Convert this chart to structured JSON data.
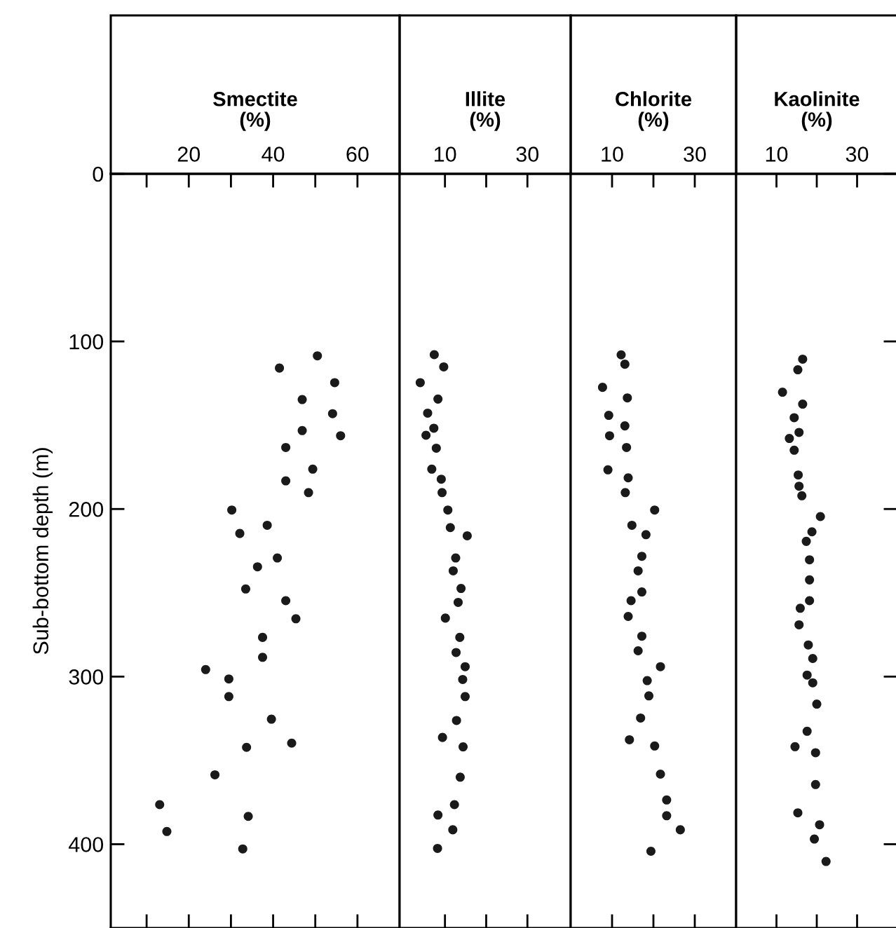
{
  "chart_data": [
    {
      "type": "scatter",
      "xlabel": "Smectite\n(%)",
      "ylabel": "Sub-bottom depth (m)",
      "color": "#1a1a1a",
      "marker": "circle",
      "grid": false,
      "legend": false,
      "xlim": [
        1.5,
        70
      ],
      "xticks": [
        {
          "value": 10,
          "label": null
        },
        20,
        {
          "value": 30,
          "label": null
        },
        40,
        {
          "value": 50,
          "label": null
        },
        60
      ],
      "ylim": [
        450,
        0
      ],
      "yticks": [
        0,
        100,
        200,
        300,
        400
      ],
      "x": [
        50.5,
        41.5,
        54.6,
        46.9,
        54.1,
        46.9,
        56.0,
        43.0,
        49.4,
        43.0,
        48.4,
        30.2,
        38.6,
        32.1,
        41.0,
        36.3,
        33.5,
        43.0,
        45.4,
        37.5,
        37.5,
        24.0,
        29.5,
        29.5,
        39.6,
        33.7,
        44.4,
        26.2,
        13.1,
        34.1,
        14.8,
        32.8
      ],
      "values": [
        108.6,
        115.9,
        124.6,
        134.7,
        143.1,
        153.2,
        156.3,
        163.3,
        176.2,
        183.2,
        190.2,
        200.6,
        209.7,
        214.6,
        229.2,
        234.5,
        247.7,
        254.7,
        265.5,
        276.6,
        288.5,
        295.8,
        301.4,
        311.9,
        325.4,
        342.2,
        339.7,
        358.6,
        376.4,
        383.4,
        392.4,
        402.8
      ]
    },
    {
      "type": "scatter",
      "xlabel": "Illite\n(%)",
      "color": "#1a1a1a",
      "marker": "circle",
      "grid": false,
      "legend": false,
      "tick_labels": "x",
      "xlim": [
        -1,
        40.5
      ],
      "xticks": [
        10,
        {
          "value": 20,
          "label": null
        },
        30
      ],
      "ylim": [
        450,
        0
      ],
      "yticks": [
        0,
        100,
        200,
        300,
        400
      ],
      "x": [
        7.4,
        9.7,
        4,
        8.3,
        5.8,
        7.3,
        5.4,
        7.9,
        6.8,
        9.1,
        9.3,
        10.7,
        11.3,
        15.4,
        12.6,
        12.0,
        13.9,
        13.2,
        10.1,
        13.6,
        12.7,
        14.9,
        14.3,
        14.9,
        12.8,
        9.4,
        14.4,
        13.7,
        12.3,
        8.3,
        11.9,
        8.2
      ],
      "values": [
        107.9,
        115.2,
        124.6,
        134.4,
        142.8,
        151.8,
        156.0,
        163.7,
        176.2,
        182.2,
        190.2,
        200.6,
        211.1,
        216.0,
        229.2,
        236.9,
        247.4,
        255.7,
        265.1,
        276.6,
        285.6,
        294.1,
        301.7,
        311.9,
        326.2,
        336.3,
        341.9,
        360.0,
        376.4,
        382.6,
        391.4,
        402.5
      ]
    },
    {
      "type": "scatter",
      "xlabel": "Chlorite\n(%)",
      "color": "#1a1a1a",
      "marker": "circle",
      "grid": false,
      "legend": false,
      "tick_labels": "x",
      "xlim": [
        0,
        40
      ],
      "xticks": [
        10,
        {
          "value": 20,
          "label": null
        },
        30
      ],
      "ylim": [
        450,
        0
      ],
      "yticks": [
        0,
        100,
        200,
        300,
        400
      ],
      "x": [
        12.2,
        13.1,
        7.7,
        13.7,
        9.2,
        13.1,
        9.4,
        13.5,
        9.0,
        13.9,
        13.2,
        20.3,
        14.8,
        18.2,
        17.2,
        16.3,
        17.2,
        14.6,
        13.9,
        17.2,
        16.3,
        21.7,
        18.5,
        18.9,
        16.9,
        14.2,
        20.3,
        21.7,
        23.2,
        23.2,
        26.5,
        19.4
      ],
      "values": [
        108.0,
        113.6,
        127.4,
        133.7,
        144.1,
        150.4,
        156.3,
        163.3,
        176.6,
        181.4,
        190.2,
        200.6,
        209.7,
        215.3,
        228.2,
        236.9,
        249.5,
        254.7,
        264.1,
        275.9,
        284.6,
        294.1,
        302.4,
        311.5,
        324.7,
        337.7,
        341.4,
        358.2,
        373.6,
        383.0,
        391.4,
        404.2
      ]
    },
    {
      "type": "scatter",
      "xlabel": "Kaolinite\n(%)",
      "color": "#1a1a1a",
      "marker": "circle",
      "grid": false,
      "legend": false,
      "tick_labels": "x",
      "xlim": [
        0,
        40
      ],
      "xticks": [
        10,
        {
          "value": 20,
          "label": null
        },
        30
      ],
      "ylim": [
        450,
        0
      ],
      "yticks": [
        {
          "value": 0,
          "label": null
        },
        {
          "value": 100,
          "label": null
        },
        {
          "value": 200,
          "label": null
        },
        {
          "value": 300,
          "label": null
        },
        {
          "value": 400,
          "label": null
        }
      ],
      "x": [
        16.5,
        15.3,
        11.5,
        16.5,
        14.4,
        15.6,
        13.2,
        14.4,
        15.4,
        15.6,
        16.3,
        20.9,
        18.8,
        17.4,
        18.2,
        18.2,
        18.2,
        15.9,
        15.6,
        17.9,
        19.0,
        17.6,
        19.0,
        20.0,
        17.6,
        14.6,
        19.7,
        19.7,
        15.3,
        20.7,
        19.4,
        22.3
      ],
      "values": [
        110.6,
        116.9,
        130.3,
        137.4,
        145.5,
        154.3,
        157.9,
        164.9,
        179.7,
        186.4,
        192.1,
        204.5,
        213.6,
        219.3,
        230.3,
        242.3,
        254.7,
        259.2,
        269.1,
        281.1,
        289.2,
        299.1,
        303.7,
        316.4,
        332.6,
        341.8,
        345.4,
        364.4,
        381.3,
        388.4,
        396.9,
        410.3
      ]
    }
  ]
}
